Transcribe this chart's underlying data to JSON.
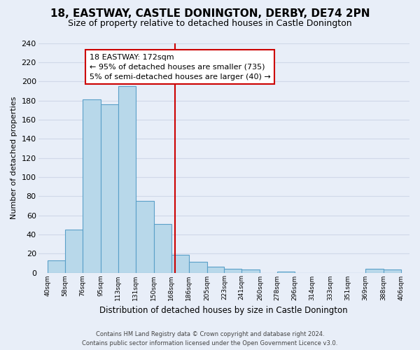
{
  "title": "18, EASTWAY, CASTLE DONINGTON, DERBY, DE74 2PN",
  "subtitle": "Size of property relative to detached houses in Castle Donington",
  "xlabel": "Distribution of detached houses by size in Castle Donington",
  "ylabel": "Number of detached properties",
  "bar_left_edges": [
    40,
    58,
    76,
    95,
    113,
    131,
    150,
    168,
    186,
    205,
    223,
    241,
    260,
    278,
    296,
    314,
    333,
    351,
    369,
    388
  ],
  "bar_heights": [
    13,
    45,
    181,
    176,
    195,
    75,
    51,
    19,
    11,
    6,
    4,
    3,
    0,
    1,
    0,
    0,
    0,
    0,
    4,
    3
  ],
  "bar_widths": [
    18,
    18,
    19,
    18,
    18,
    19,
    18,
    18,
    19,
    18,
    18,
    19,
    18,
    18,
    18,
    19,
    18,
    18,
    19,
    18
  ],
  "tick_labels": [
    "40sqm",
    "58sqm",
    "76sqm",
    "95sqm",
    "113sqm",
    "131sqm",
    "150sqm",
    "168sqm",
    "186sqm",
    "205sqm",
    "223sqm",
    "241sqm",
    "260sqm",
    "278sqm",
    "296sqm",
    "314sqm",
    "333sqm",
    "351sqm",
    "369sqm",
    "388sqm",
    "406sqm"
  ],
  "tick_positions": [
    40,
    58,
    76,
    95,
    113,
    131,
    150,
    168,
    186,
    205,
    223,
    241,
    260,
    278,
    296,
    314,
    333,
    351,
    369,
    388,
    406
  ],
  "bar_color": "#b8d8ea",
  "bar_edge_color": "#5aa0c8",
  "vline_x": 172,
  "vline_color": "#cc0000",
  "ylim": [
    0,
    240
  ],
  "xlim": [
    30,
    415
  ],
  "annotation_title": "18 EASTWAY: 172sqm",
  "annotation_line1": "← 95% of detached houses are smaller (735)",
  "annotation_line2": "5% of semi-detached houses are larger (40) →",
  "footer_line1": "Contains HM Land Registry data © Crown copyright and database right 2024.",
  "footer_line2": "Contains public sector information licensed under the Open Government Licence v3.0.",
  "yticks": [
    0,
    20,
    40,
    60,
    80,
    100,
    120,
    140,
    160,
    180,
    200,
    220,
    240
  ],
  "background_color": "#e8eef8",
  "grid_color": "#d0d8e8"
}
